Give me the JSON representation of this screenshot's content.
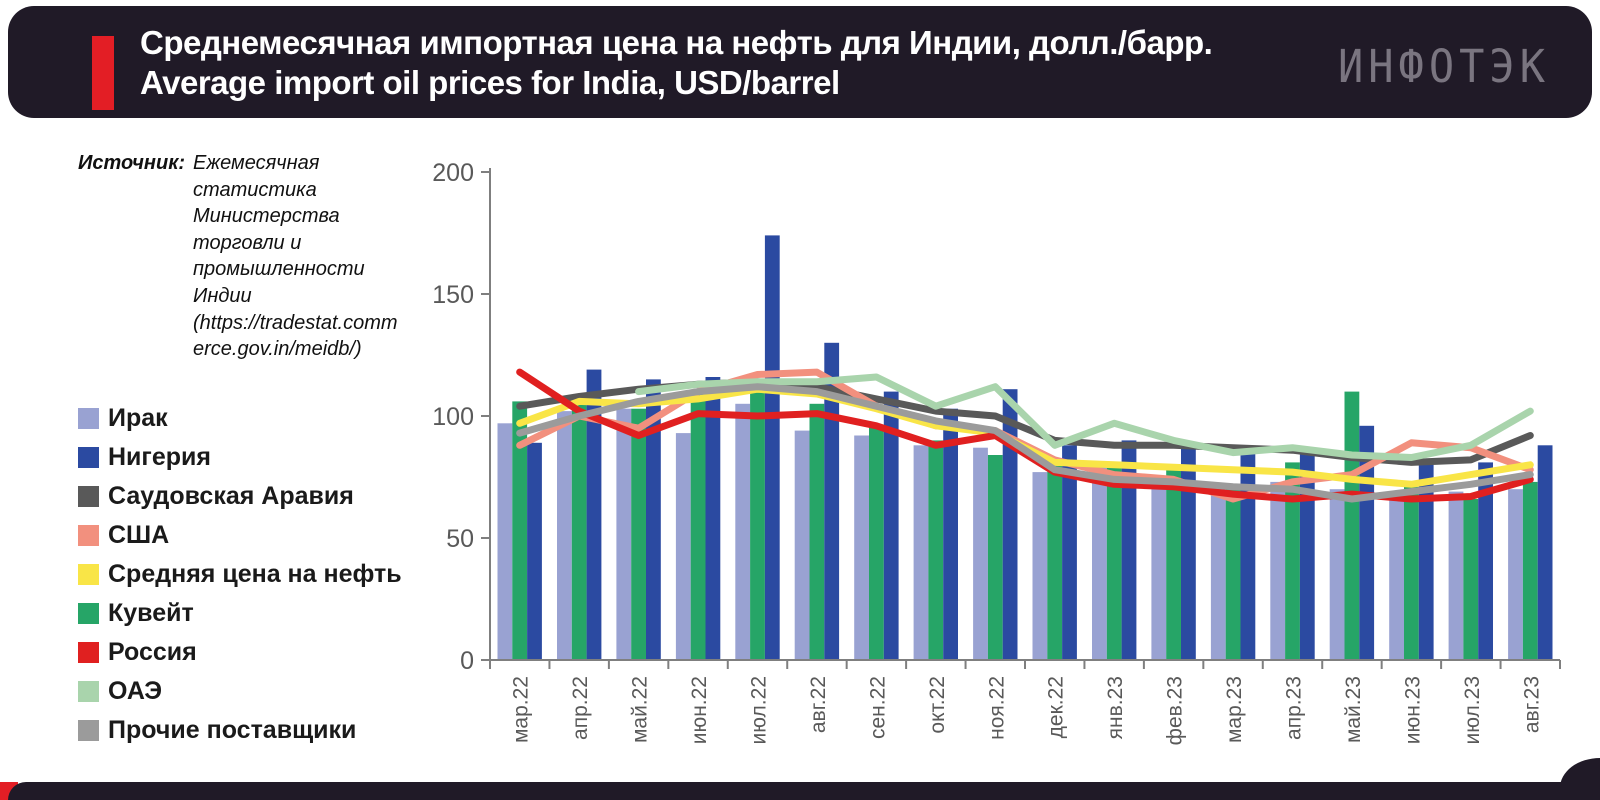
{
  "header": {
    "title_ru": "Среднемесячная импортная цена на нефть для Индии, долл./барр.",
    "title_en": "Average import oil prices for India, USD/barrel",
    "logo": "ИНФОТЭК"
  },
  "source": {
    "label": "Источник:",
    "text": "Ежемесячная статистика Министерства торговли и промышленности Индии (https://tradestat.commerce.gov.in/meidb/)"
  },
  "colors": {
    "header_bg": "#201a27",
    "accent_red": "#e31e25",
    "axis": "#7f7f7f",
    "tick_text": "#595959"
  },
  "legend": [
    {
      "label": "Ирак",
      "color": "#99a2d2",
      "type": "bar"
    },
    {
      "label": "Нигерия",
      "color": "#2b4aa1",
      "type": "bar"
    },
    {
      "label": "Саудовская Аравия",
      "color": "#595959",
      "type": "line"
    },
    {
      "label": "США",
      "color": "#f2907e",
      "type": "line"
    },
    {
      "label": "Средняя цена на нефть",
      "color": "#f9e547",
      "type": "line"
    },
    {
      "label": "Кувейт",
      "color": "#26a567",
      "type": "bar"
    },
    {
      "label": "Россия",
      "color": "#e02020",
      "type": "line"
    },
    {
      "label": "ОАЭ",
      "color": "#a9d4ac",
      "type": "line"
    },
    {
      "label": "Прочие поставщики",
      "color": "#9b9b9b",
      "type": "line"
    }
  ],
  "chart_data": {
    "type": "bar+line",
    "title": "Среднемесячная импортная цена на нефть для Индии, долл./барр.",
    "xlabel": "",
    "ylabel": "",
    "ylim": [
      0,
      200
    ],
    "y_ticks": [
      0,
      50,
      100,
      150,
      200
    ],
    "grid": false,
    "legend_position": "left",
    "categories": [
      "мар.22",
      "апр.22",
      "май.22",
      "июн.22",
      "июл.22",
      "авг.22",
      "сен.22",
      "окт.22",
      "ноя.22",
      "дек.22",
      "янв.23",
      "фев.23",
      "мар.23",
      "апр.23",
      "май.23",
      "июн.23",
      "июл.23",
      "авг.23"
    ],
    "bar_series": [
      {
        "name": "Ирак",
        "color": "#99a2d2",
        "values": [
          97,
          102,
          103,
          93,
          105,
          94,
          92,
          88,
          87,
          77,
          80,
          74,
          72,
          73,
          70,
          67,
          69,
          70
        ]
      },
      {
        "name": "Кувейт",
        "color": "#26a567",
        "values": [
          106,
          105,
          103,
          109,
          111,
          105,
          96,
          90,
          84,
          82,
          79,
          79,
          72,
          81,
          110,
          71,
          66,
          73
        ]
      },
      {
        "name": "Нигерия",
        "color": "#2b4aa1",
        "values": [
          89,
          119,
          115,
          116,
          174,
          130,
          110,
          103,
          111,
          88,
          90,
          87,
          85,
          85,
          96,
          80,
          81,
          88
        ]
      }
    ],
    "line_series": [
      {
        "name": "Саудовская Аравия",
        "color": "#595959",
        "values": [
          104,
          108,
          111,
          113,
          114,
          112,
          107,
          102,
          100,
          90,
          88,
          88,
          87,
          86,
          83,
          81,
          82,
          92
        ]
      },
      {
        "name": "США",
        "color": "#f2907e",
        "values": [
          88,
          100,
          95,
          110,
          117,
          118,
          104,
          96,
          94,
          82,
          76,
          74,
          66,
          73,
          76,
          89,
          87,
          78
        ]
      },
      {
        "name": "Средняя цена на нефть",
        "color": "#f9e547",
        "values": [
          97,
          106,
          105,
          107,
          111,
          109,
          103,
          96,
          93,
          81,
          80,
          79,
          78,
          77,
          74,
          72,
          76,
          80
        ]
      },
      {
        "name": "Россия",
        "color": "#e02020",
        "values": [
          118,
          102,
          92,
          101,
          100,
          101,
          96,
          88,
          92,
          77,
          72,
          71,
          68,
          66,
          68,
          66,
          67,
          74
        ]
      },
      {
        "name": "ОАЭ",
        "color": "#a9d4ac",
        "values": [
          null,
          null,
          110,
          113,
          114,
          114,
          116,
          104,
          112,
          88,
          97,
          90,
          85,
          87,
          84,
          83,
          88,
          102
        ]
      },
      {
        "name": "Прочие поставщики",
        "color": "#9b9b9b",
        "values": [
          93,
          100,
          106,
          110,
          112,
          110,
          104,
          98,
          94,
          78,
          74,
          73,
          71,
          70,
          66,
          69,
          72,
          76
        ]
      }
    ]
  }
}
